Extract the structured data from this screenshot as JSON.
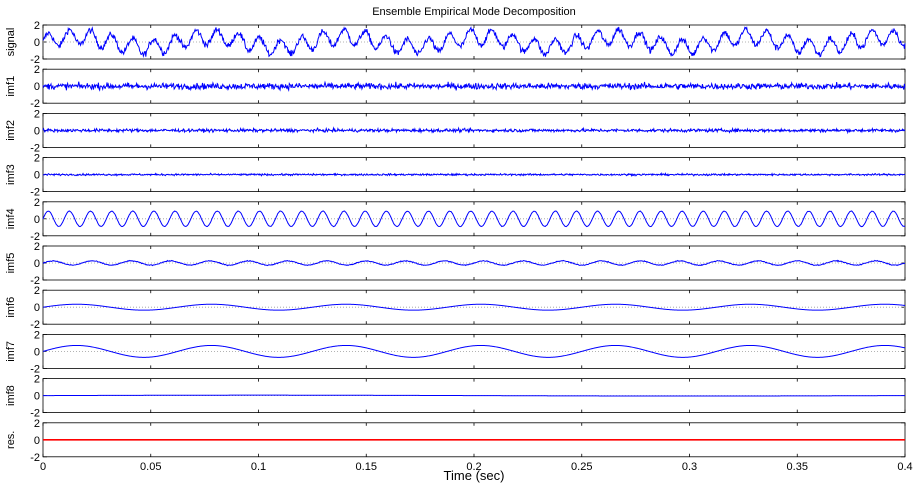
{
  "chart_data": {
    "type": "line",
    "title": "Ensemble Empirical Mode Decomposition",
    "xlabel": "Time (sec)",
    "xlim": [
      0,
      0.4
    ],
    "x_ticks": [
      0,
      0.05,
      0.1,
      0.15,
      0.2,
      0.25,
      0.3,
      0.35,
      0.4
    ],
    "x_tick_labels": [
      "0",
      "0.05",
      "0.1",
      "0.15",
      "0.2",
      "0.25",
      "0.3",
      "0.35",
      "0.4"
    ],
    "grid": false,
    "panel_ylim": [
      -2,
      2
    ],
    "panel_y_ticks": [
      -2,
      0,
      2
    ],
    "panel_y_tick_labels": [
      "-2",
      "0",
      "2"
    ],
    "line_color": "#0000ff",
    "residue_color": "#ff0000",
    "zero_line_color": "#9a9a9a",
    "panels": [
      {
        "name": "signal",
        "description": "noisy composite signal",
        "components": [
          {
            "amp": 0.6,
            "freq": 16
          },
          {
            "amp": 0.9,
            "freq": 102
          }
        ],
        "noise": 0.35
      },
      {
        "name": "imf1",
        "description": "high-frequency noise",
        "components": [],
        "noise": 0.35
      },
      {
        "name": "imf2",
        "description": "high-frequency noise",
        "components": [],
        "noise": 0.18
      },
      {
        "name": "imf3",
        "description": "low-amplitude noise",
        "components": [],
        "noise": 0.1
      },
      {
        "name": "imf4",
        "description": "oscillation",
        "components": [
          {
            "amp": 0.9,
            "freq": 102
          }
        ],
        "noise": 0.03
      },
      {
        "name": "imf5",
        "description": "small oscillation",
        "components": [
          {
            "amp": 0.25,
            "freq": 55
          }
        ],
        "noise": 0.05
      },
      {
        "name": "imf6",
        "description": "slow oscillation",
        "components": [
          {
            "amp": 0.35,
            "freq": 16
          }
        ],
        "noise": 0.0
      },
      {
        "name": "imf7",
        "description": "slow oscillation",
        "components": [
          {
            "amp": 0.7,
            "freq": 16
          }
        ],
        "noise": 0.0
      },
      {
        "name": "imf8",
        "description": "near-zero trend",
        "components": [
          {
            "amp": 0.05,
            "freq": 2.5
          }
        ],
        "noise": 0.0
      },
      {
        "name": "res.",
        "description": "residue (red, flat)",
        "components": [],
        "noise": 0.0
      }
    ]
  }
}
